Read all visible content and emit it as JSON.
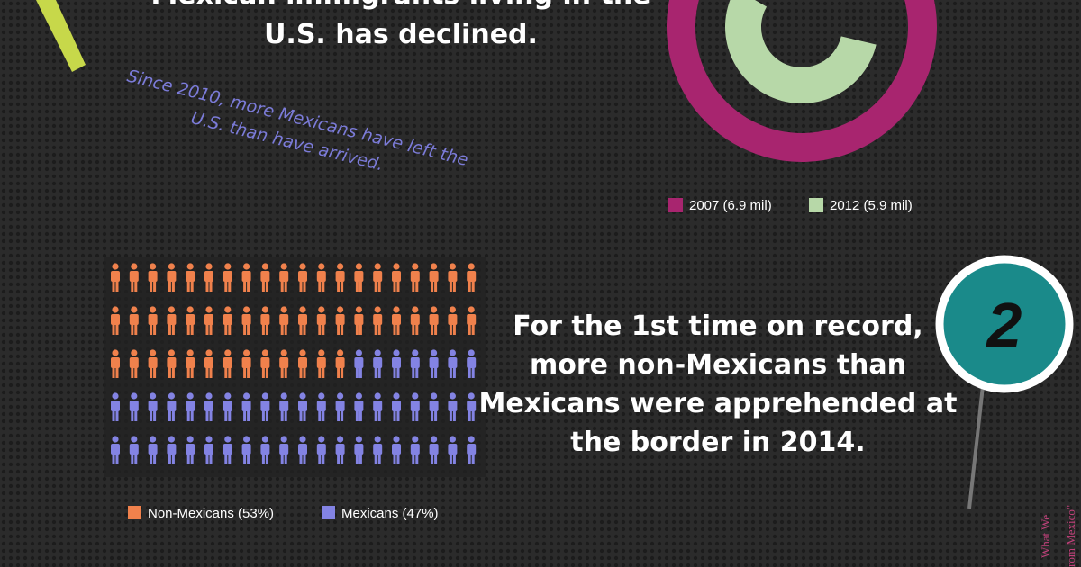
{
  "headline": [
    "Mexican immigrants living in the",
    "U.S. has declined."
  ],
  "note": [
    "Since 2010, more Mexicans have left the",
    "U.S. than have arrived."
  ],
  "chart_data": [
    {
      "type": "radial-bar",
      "series": [
        {
          "name": "2007 (6.9 mil)",
          "color": "#a8256f",
          "values": [
            6.9
          ]
        },
        {
          "name": "2012 (5.9 mil)",
          "color": "#b7d8a8",
          "values": [
            5.9
          ]
        }
      ]
    },
    {
      "type": "waffle",
      "series": [
        {
          "name": "Non-Mexicans (53%)",
          "color": "#f0814c",
          "values": [
            53
          ]
        },
        {
          "name": "Mexicans (47%)",
          "color": "#8383e3",
          "values": [
            47
          ]
        }
      ]
    }
  ],
  "badge": "2",
  "fact": [
    "For the 1st time on record,",
    "more non-Mexicans than",
    "Mexicans were apprehended at",
    "the border in 2014."
  ],
  "side_note": [
    "What We",
    "rom Mexico\""
  ]
}
